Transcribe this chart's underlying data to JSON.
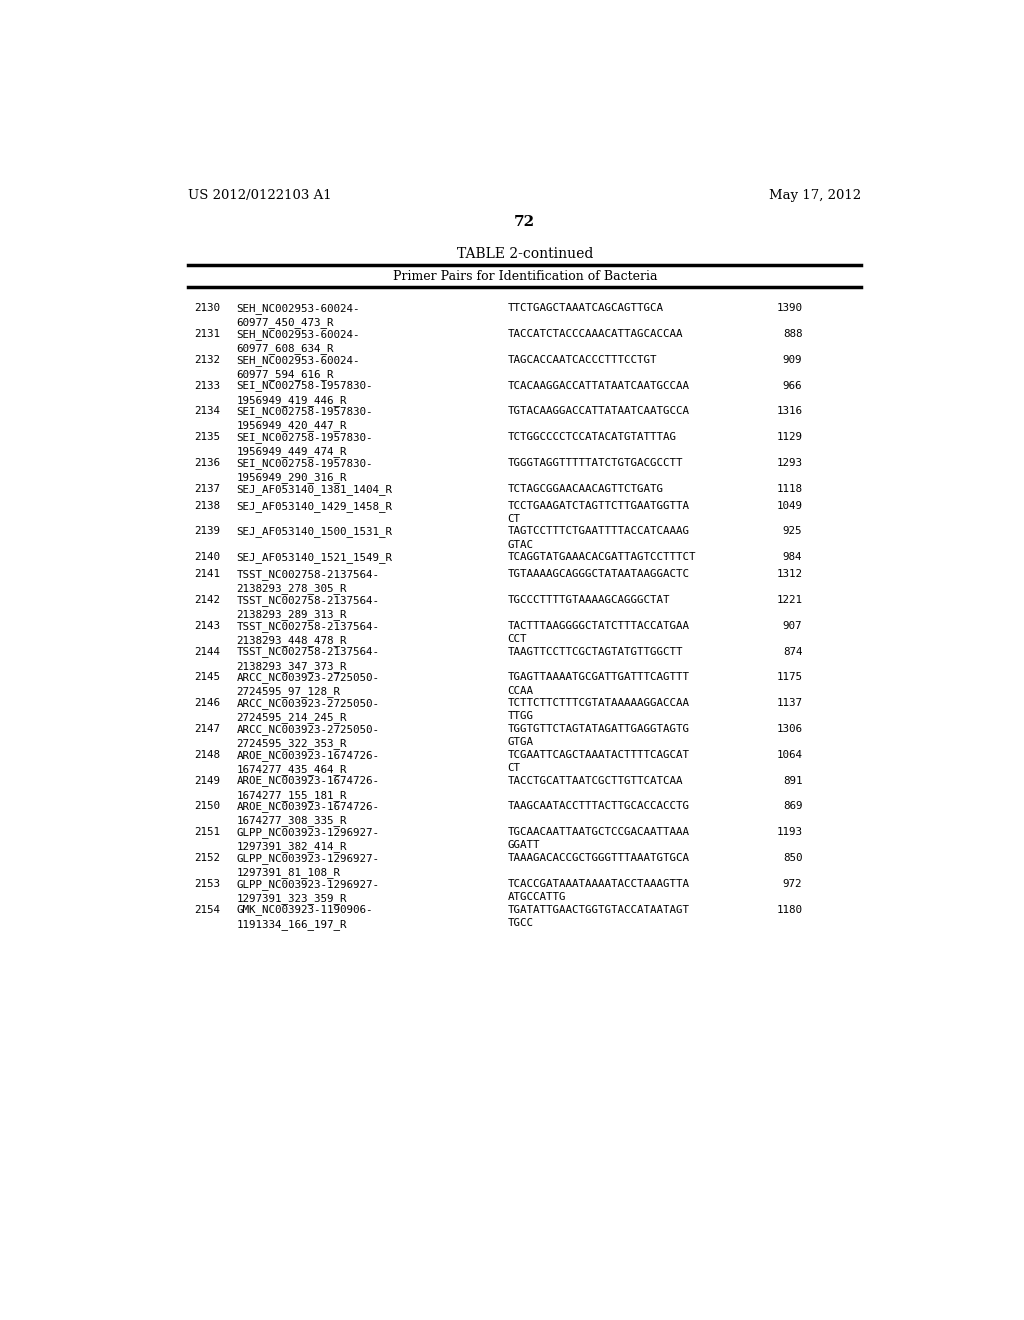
{
  "header_left": "US 2012/0122103 A1",
  "header_right": "May 17, 2012",
  "page_number": "72",
  "table_title": "TABLE 2-continued",
  "table_subtitle": "Primer Pairs for Identification of Bacteria",
  "background_color": "#ffffff",
  "rows": [
    {
      "num": "2130",
      "id": "SEH_NC002953-60024-\n60977_450_473_R",
      "sequence": "TTCTGAGCTAAATCAGCAGTTGCA",
      "value": "1390"
    },
    {
      "num": "2131",
      "id": "SEH_NC002953-60024-\n60977_608_634_R",
      "sequence": "TACCATCTACCCAAACATTAGCACCAA",
      "value": "888"
    },
    {
      "num": "2132",
      "id": "SEH_NC002953-60024-\n60977_594_616_R",
      "sequence": "TAGCACCAATCACCCTTTCCTGT",
      "value": "909"
    },
    {
      "num": "2133",
      "id": "SEI_NC002758-1957830-\n1956949_419_446_R",
      "sequence": "TCACAAGGACCATTATAATCAATGCCAA",
      "value": "966"
    },
    {
      "num": "2134",
      "id": "SEI_NC002758-1957830-\n1956949_420_447_R",
      "sequence": "TGTACAAGGACCATTATAATCAATGCCA",
      "value": "1316"
    },
    {
      "num": "2135",
      "id": "SEI_NC002758-1957830-\n1956949_449_474_R",
      "sequence": "TCTGGCCCCTCCATACATGTATTTAG",
      "value": "1129"
    },
    {
      "num": "2136",
      "id": "SEI_NC002758-1957830-\n1956949_290_316_R",
      "sequence": "TGGGTAGGTTTTTATCTGTGACGCCTT",
      "value": "1293"
    },
    {
      "num": "2137",
      "id": "SEJ_AF053140_1381_1404_R",
      "sequence": "TCTAGCGGAACAACAGTTCTGATG",
      "value": "1118"
    },
    {
      "num": "2138",
      "id": "SEJ_AF053140_1429_1458_R",
      "sequence": "TCCTGAAGATCTAGTTCTTGAATGGTTA\nCT",
      "value": "1049"
    },
    {
      "num": "2139",
      "id": "SEJ_AF053140_1500_1531_R",
      "sequence": "TAGTCCTTTCTGAATTTTACCATCAAAG\nGTAC",
      "value": "925"
    },
    {
      "num": "2140",
      "id": "SEJ_AF053140_1521_1549_R",
      "sequence": "TCAGGTATGAAACACGATTAGTCCTTTCT",
      "value": "984"
    },
    {
      "num": "2141",
      "id": "TSST_NC002758-2137564-\n2138293_278_305_R",
      "sequence": "TGTAAAAGCAGGGCTATAATAAGGACTC",
      "value": "1312"
    },
    {
      "num": "2142",
      "id": "TSST_NC002758-2137564-\n2138293_289_313_R",
      "sequence": "TGCCCTTTTGTAAAAGCAGGGCTAT",
      "value": "1221"
    },
    {
      "num": "2143",
      "id": "TSST_NC002758-2137564-\n2138293_448_478_R",
      "sequence": "TACTTTAAGGGGCTATCTTTACCATGAA\nCCT",
      "value": "907"
    },
    {
      "num": "2144",
      "id": "TSST_NC002758-2137564-\n2138293_347_373_R",
      "sequence": "TAAGTTCCTTCGCTAGTATGTTGGCTT",
      "value": "874"
    },
    {
      "num": "2145",
      "id": "ARCC_NC003923-2725050-\n2724595_97_128_R",
      "sequence": "TGAGTTAAAATGCGATTGATTTCAGTTT\nCCAA",
      "value": "1175"
    },
    {
      "num": "2146",
      "id": "ARCC_NC003923-2725050-\n2724595_214_245_R",
      "sequence": "TCTTCTTCTTTCGTATAAAAAGGACCAA\nTTGG",
      "value": "1137"
    },
    {
      "num": "2147",
      "id": "ARCC_NC003923-2725050-\n2724595_322_353_R",
      "sequence": "TGGTGTTCTAGTATAGATTGAGGTAGTG\nGTGA",
      "value": "1306"
    },
    {
      "num": "2148",
      "id": "AROE_NC003923-1674726-\n1674277_435_464_R",
      "sequence": "TCGAATTCAGCTAAATACTTTTCAGCAT\nCT",
      "value": "1064"
    },
    {
      "num": "2149",
      "id": "AROE_NC003923-1674726-\n1674277_155_181_R",
      "sequence": "TACCTGCATTAATCGCTTGTTCATCAA",
      "value": "891"
    },
    {
      "num": "2150",
      "id": "AROE_NC003923-1674726-\n1674277_308_335_R",
      "sequence": "TAAGCAATACCTTTACTTGCACCACCTG",
      "value": "869"
    },
    {
      "num": "2151",
      "id": "GLPP_NC003923-1296927-\n1297391_382_414_R",
      "sequence": "TGCAACAATTAATGCTCCGACAATTAAA\nGGATT",
      "value": "1193"
    },
    {
      "num": "2152",
      "id": "GLPP_NC003923-1296927-\n1297391_81_108_R",
      "sequence": "TAAAGACACCGCTGGGTTTAAATGTGCA",
      "value": "850"
    },
    {
      "num": "2153",
      "id": "GLPP_NC003923-1296927-\n1297391_323_359_R",
      "sequence": "TCACCGATAAATAAAATACCTAAAGTTA\nATGCCATTG",
      "value": "972"
    },
    {
      "num": "2154",
      "id": "GMK_NC003923-1190906-\n1191334_166_197_R",
      "sequence": "TGATATTGAACTGGTGTACCATAATAGT\nTGCC",
      "value": "1180"
    }
  ]
}
